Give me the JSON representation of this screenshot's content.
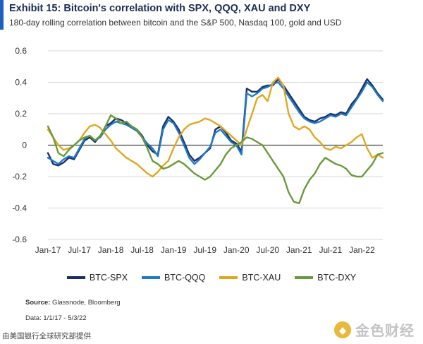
{
  "header": {
    "title": "Exhibit 15: Bitcoin's correlation with SPX, QQQ, XAU and DXY",
    "subtitle": "180-day rolling correlation between bitcoin and the S&P 500, Nasdaq 100, gold and USD",
    "accent_color": "#1f5fbf"
  },
  "footer": {
    "source_label": "Source:",
    "source_text": "Glassnode, Bloomberg",
    "date_note": "Data: 1/1/17 - 5/3/22",
    "credit": "由美国银行全球研究部提供",
    "watermark_text": "金色财经",
    "watermark_icon": "gold-block-logo-icon"
  },
  "chart_data": {
    "type": "line",
    "title": "Exhibit 15: Bitcoin's correlation with SPX, QQQ, XAU and DXY",
    "subtitle": "180-day rolling correlation between bitcoin and the S&P 500, Nasdaq 100, gold and USD",
    "xlabel": "",
    "ylabel": "",
    "x_ticks": [
      "Jan-17",
      "Jul-17",
      "Jan-18",
      "Jul-18",
      "Jan-19",
      "Jul-19",
      "Jan-20",
      "Jul-20",
      "Jan-21",
      "Jul-21",
      "Jan-22"
    ],
    "x_range": [
      "Jan-17",
      "May-22"
    ],
    "ylim": [
      -0.6,
      0.6
    ],
    "y_ticks": [
      -0.6,
      -0.4,
      -0.2,
      0,
      0.2,
      0.4,
      0.6
    ],
    "grid": "horizontal",
    "zero_line": true,
    "legend_position": "bottom",
    "series": [
      {
        "name": "BTC-SPX",
        "color": "#1b2f63",
        "points": [
          [
            "Jan-17",
            -0.05
          ],
          [
            "Feb-17",
            -0.12
          ],
          [
            "Mar-17",
            -0.13
          ],
          [
            "Apr-17",
            -0.11
          ],
          [
            "May-17",
            -0.08
          ],
          [
            "Jun-17",
            -0.09
          ],
          [
            "Jul-17",
            -0.03
          ],
          [
            "Aug-17",
            0.03
          ],
          [
            "Sep-17",
            0.05
          ],
          [
            "Oct-17",
            0.02
          ],
          [
            "Nov-17",
            0.06
          ],
          [
            "Dec-17",
            0.12
          ],
          [
            "Jan-18",
            0.14
          ],
          [
            "Feb-18",
            0.17
          ],
          [
            "Mar-18",
            0.16
          ],
          [
            "Apr-18",
            0.14
          ],
          [
            "May-18",
            0.12
          ],
          [
            "Jun-18",
            0.1
          ],
          [
            "Jul-18",
            0.06
          ],
          [
            "Aug-18",
            0.0
          ],
          [
            "Sep-18",
            -0.04
          ],
          [
            "Oct-18",
            -0.06
          ],
          [
            "Nov-18",
            0.12
          ],
          [
            "Dec-18",
            0.18
          ],
          [
            "Jan-19",
            0.15
          ],
          [
            "Feb-19",
            0.1
          ],
          [
            "Mar-19",
            0.02
          ],
          [
            "Apr-19",
            -0.06
          ],
          [
            "May-19",
            -0.1
          ],
          [
            "Jun-19",
            -0.08
          ],
          [
            "Jul-19",
            -0.05
          ],
          [
            "Aug-19",
            -0.02
          ],
          [
            "Sep-19",
            0.1
          ],
          [
            "Oct-19",
            0.12
          ],
          [
            "Nov-19",
            0.08
          ],
          [
            "Dec-19",
            0.03
          ],
          [
            "Jan-20",
            0.01
          ],
          [
            "Feb-20",
            -0.04
          ],
          [
            "Mar-20",
            0.36
          ],
          [
            "Apr-20",
            0.34
          ],
          [
            "May-20",
            0.34
          ],
          [
            "Jun-20",
            0.37
          ],
          [
            "Jul-20",
            0.38
          ],
          [
            "Aug-20",
            0.38
          ],
          [
            "Sep-20",
            0.42
          ],
          [
            "Oct-20",
            0.38
          ],
          [
            "Nov-20",
            0.33
          ],
          [
            "Dec-20",
            0.28
          ],
          [
            "Jan-21",
            0.23
          ],
          [
            "Feb-21",
            0.18
          ],
          [
            "Mar-21",
            0.16
          ],
          [
            "Apr-21",
            0.15
          ],
          [
            "May-21",
            0.17
          ],
          [
            "Jun-21",
            0.18
          ],
          [
            "Jul-21",
            0.2
          ],
          [
            "Aug-21",
            0.19
          ],
          [
            "Sep-21",
            0.21
          ],
          [
            "Oct-21",
            0.2
          ],
          [
            "Nov-21",
            0.26
          ],
          [
            "Dec-21",
            0.3
          ],
          [
            "Jan-22",
            0.36
          ],
          [
            "Feb-22",
            0.42
          ],
          [
            "Mar-22",
            0.38
          ],
          [
            "Apr-22",
            0.33
          ],
          [
            "May-22",
            0.29
          ]
        ]
      },
      {
        "name": "BTC-QQQ",
        "color": "#1f7ac6",
        "points": [
          [
            "Jan-17",
            -0.08
          ],
          [
            "Feb-17",
            -0.1
          ],
          [
            "Mar-17",
            -0.12
          ],
          [
            "Apr-17",
            -0.09
          ],
          [
            "May-17",
            -0.07
          ],
          [
            "Jun-17",
            -0.08
          ],
          [
            "Jul-17",
            -0.02
          ],
          [
            "Aug-17",
            0.04
          ],
          [
            "Sep-17",
            0.06
          ],
          [
            "Oct-17",
            0.03
          ],
          [
            "Nov-17",
            0.05
          ],
          [
            "Dec-17",
            0.1
          ],
          [
            "Jan-18",
            0.13
          ],
          [
            "Feb-18",
            0.15
          ],
          [
            "Mar-18",
            0.14
          ],
          [
            "Apr-18",
            0.13
          ],
          [
            "May-18",
            0.11
          ],
          [
            "Jun-18",
            0.09
          ],
          [
            "Jul-18",
            0.05
          ],
          [
            "Aug-18",
            0.01
          ],
          [
            "Sep-18",
            -0.02
          ],
          [
            "Oct-18",
            -0.07
          ],
          [
            "Nov-18",
            0.1
          ],
          [
            "Dec-18",
            0.16
          ],
          [
            "Jan-19",
            0.14
          ],
          [
            "Feb-19",
            0.08
          ],
          [
            "Mar-19",
            0.0
          ],
          [
            "Apr-19",
            -0.08
          ],
          [
            "May-19",
            -0.12
          ],
          [
            "Jun-19",
            -0.09
          ],
          [
            "Jul-19",
            -0.05
          ],
          [
            "Aug-19",
            -0.01
          ],
          [
            "Sep-19",
            0.08
          ],
          [
            "Oct-19",
            0.1
          ],
          [
            "Nov-19",
            0.06
          ],
          [
            "Dec-19",
            0.02
          ],
          [
            "Jan-20",
            0.0
          ],
          [
            "Feb-20",
            -0.06
          ],
          [
            "Mar-20",
            0.33
          ],
          [
            "Apr-20",
            0.31
          ],
          [
            "May-20",
            0.33
          ],
          [
            "Jun-20",
            0.36
          ],
          [
            "Jul-20",
            0.37
          ],
          [
            "Aug-20",
            0.39
          ],
          [
            "Sep-20",
            0.4
          ],
          [
            "Oct-20",
            0.36
          ],
          [
            "Nov-20",
            0.31
          ],
          [
            "Dec-20",
            0.26
          ],
          [
            "Jan-21",
            0.21
          ],
          [
            "Feb-21",
            0.17
          ],
          [
            "Mar-21",
            0.15
          ],
          [
            "Apr-21",
            0.14
          ],
          [
            "May-21",
            0.15
          ],
          [
            "Jun-21",
            0.17
          ],
          [
            "Jul-21",
            0.19
          ],
          [
            "Aug-21",
            0.18
          ],
          [
            "Sep-21",
            0.2
          ],
          [
            "Oct-21",
            0.19
          ],
          [
            "Nov-21",
            0.24
          ],
          [
            "Dec-21",
            0.29
          ],
          [
            "Jan-22",
            0.34
          ],
          [
            "Feb-22",
            0.4
          ],
          [
            "Mar-22",
            0.37
          ],
          [
            "Apr-22",
            0.32
          ],
          [
            "May-22",
            0.28
          ]
        ]
      },
      {
        "name": "BTC-XAU",
        "color": "#e0a820",
        "points": [
          [
            "Jan-17",
            0.1
          ],
          [
            "Feb-17",
            0.05
          ],
          [
            "Mar-17",
            0.0
          ],
          [
            "Apr-17",
            -0.03
          ],
          [
            "May-17",
            -0.02
          ],
          [
            "Jun-17",
            0.0
          ],
          [
            "Jul-17",
            0.03
          ],
          [
            "Aug-17",
            0.08
          ],
          [
            "Sep-17",
            0.12
          ],
          [
            "Oct-17",
            0.13
          ],
          [
            "Nov-17",
            0.11
          ],
          [
            "Dec-17",
            0.07
          ],
          [
            "Jan-18",
            0.03
          ],
          [
            "Feb-18",
            -0.02
          ],
          [
            "Mar-18",
            -0.05
          ],
          [
            "Apr-18",
            -0.08
          ],
          [
            "May-18",
            -0.1
          ],
          [
            "Jun-18",
            -0.12
          ],
          [
            "Jul-18",
            -0.15
          ],
          [
            "Aug-18",
            -0.18
          ],
          [
            "Sep-18",
            -0.2
          ],
          [
            "Oct-18",
            -0.17
          ],
          [
            "Nov-18",
            -0.13
          ],
          [
            "Dec-18",
            -0.1
          ],
          [
            "Jan-19",
            -0.02
          ],
          [
            "Feb-19",
            0.05
          ],
          [
            "Mar-19",
            0.1
          ],
          [
            "Apr-19",
            0.13
          ],
          [
            "May-19",
            0.14
          ],
          [
            "Jun-19",
            0.15
          ],
          [
            "Jul-19",
            0.17
          ],
          [
            "Aug-19",
            0.16
          ],
          [
            "Sep-19",
            0.14
          ],
          [
            "Oct-19",
            0.12
          ],
          [
            "Nov-19",
            0.09
          ],
          [
            "Dec-19",
            0.06
          ],
          [
            "Jan-20",
            0.03
          ],
          [
            "Feb-20",
            0.0
          ],
          [
            "Mar-20",
            0.1
          ],
          [
            "Apr-20",
            0.2
          ],
          [
            "May-20",
            0.3
          ],
          [
            "Jun-20",
            0.32
          ],
          [
            "Jul-20",
            0.28
          ],
          [
            "Aug-20",
            0.4
          ],
          [
            "Sep-20",
            0.43
          ],
          [
            "Oct-20",
            0.38
          ],
          [
            "Nov-20",
            0.2
          ],
          [
            "Dec-20",
            0.12
          ],
          [
            "Jan-21",
            0.1
          ],
          [
            "Feb-21",
            0.12
          ],
          [
            "Mar-21",
            0.1
          ],
          [
            "Apr-21",
            0.05
          ],
          [
            "May-21",
            0.02
          ],
          [
            "Jun-21",
            -0.02
          ],
          [
            "Jul-21",
            -0.03
          ],
          [
            "Aug-21",
            -0.01
          ],
          [
            "Sep-21",
            -0.02
          ],
          [
            "Oct-21",
            0.0
          ],
          [
            "Nov-21",
            0.02
          ],
          [
            "Dec-21",
            0.05
          ],
          [
            "Jan-22",
            0.07
          ],
          [
            "Feb-22",
            -0.02
          ],
          [
            "Mar-22",
            -0.08
          ],
          [
            "Apr-22",
            -0.06
          ],
          [
            "May-22",
            -0.08
          ]
        ]
      },
      {
        "name": "BTC-DXY",
        "color": "#6a9a3a",
        "points": [
          [
            "Jan-17",
            0.12
          ],
          [
            "Feb-17",
            0.05
          ],
          [
            "Mar-17",
            -0.05
          ],
          [
            "Apr-17",
            -0.07
          ],
          [
            "May-17",
            -0.03
          ],
          [
            "Jun-17",
            0.0
          ],
          [
            "Jul-17",
            0.03
          ],
          [
            "Aug-17",
            0.05
          ],
          [
            "Sep-17",
            0.06
          ],
          [
            "Oct-17",
            0.03
          ],
          [
            "Nov-17",
            0.06
          ],
          [
            "Dec-17",
            0.12
          ],
          [
            "Jan-18",
            0.19
          ],
          [
            "Feb-18",
            0.17
          ],
          [
            "Mar-18",
            0.14
          ],
          [
            "Apr-18",
            0.15
          ],
          [
            "May-18",
            0.12
          ],
          [
            "Jun-18",
            0.1
          ],
          [
            "Jul-18",
            0.05
          ],
          [
            "Aug-18",
            -0.02
          ],
          [
            "Sep-18",
            -0.1
          ],
          [
            "Oct-18",
            -0.12
          ],
          [
            "Nov-18",
            -0.15
          ],
          [
            "Dec-18",
            -0.14
          ],
          [
            "Jan-19",
            -0.12
          ],
          [
            "Feb-19",
            -0.1
          ],
          [
            "Mar-19",
            -0.12
          ],
          [
            "Apr-19",
            -0.15
          ],
          [
            "May-19",
            -0.18
          ],
          [
            "Jun-19",
            -0.2
          ],
          [
            "Jul-19",
            -0.22
          ],
          [
            "Aug-19",
            -0.2
          ],
          [
            "Sep-19",
            -0.16
          ],
          [
            "Oct-19",
            -0.12
          ],
          [
            "Nov-19",
            -0.06
          ],
          [
            "Dec-19",
            -0.02
          ],
          [
            "Jan-20",
            0.0
          ],
          [
            "Feb-20",
            0.02
          ],
          [
            "Mar-20",
            0.05
          ],
          [
            "Apr-20",
            0.04
          ],
          [
            "May-20",
            0.02
          ],
          [
            "Jun-20",
            0.0
          ],
          [
            "Jul-20",
            -0.05
          ],
          [
            "Aug-20",
            -0.1
          ],
          [
            "Sep-20",
            -0.15
          ],
          [
            "Oct-20",
            -0.2
          ],
          [
            "Nov-20",
            -0.3
          ],
          [
            "Dec-20",
            -0.36
          ],
          [
            "Jan-21",
            -0.37
          ],
          [
            "Feb-21",
            -0.28
          ],
          [
            "Mar-21",
            -0.22
          ],
          [
            "Apr-21",
            -0.18
          ],
          [
            "May-21",
            -0.12
          ],
          [
            "Jun-21",
            -0.08
          ],
          [
            "Jul-21",
            -0.1
          ],
          [
            "Aug-21",
            -0.12
          ],
          [
            "Sep-21",
            -0.13
          ],
          [
            "Oct-21",
            -0.15
          ],
          [
            "Nov-21",
            -0.19
          ],
          [
            "Dec-21",
            -0.2
          ],
          [
            "Jan-22",
            -0.2
          ],
          [
            "Feb-22",
            -0.16
          ],
          [
            "Mar-22",
            -0.12
          ],
          [
            "Apr-22",
            -0.06
          ],
          [
            "May-22",
            -0.05
          ]
        ]
      }
    ]
  }
}
